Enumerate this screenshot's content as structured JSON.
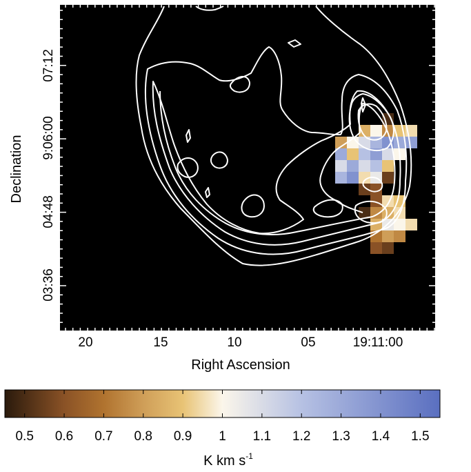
{
  "chart_data": {
    "type": "heatmap",
    "xlabel": "Right Ascension",
    "ylabel": "Declination",
    "x_ticks": [
      "20",
      "15",
      "10",
      "05",
      "19:11:00"
    ],
    "y_ticks": [
      "03:36",
      "04:48",
      "9:06:00",
      "07:12"
    ],
    "background": "#000000",
    "contour_color": "#ffffff",
    "colorbar": {
      "label": "K km s",
      "label_exponent": "-1",
      "min": 0.45,
      "max": 1.55,
      "ticks": [
        "0.5",
        "0.6",
        "0.7",
        "0.8",
        "0.9",
        "1",
        "1.1",
        "1.2",
        "1.3",
        "1.4",
        "1.5"
      ],
      "tick_values": [
        0.5,
        0.6,
        0.7,
        0.8,
        0.9,
        1.0,
        1.1,
        1.2,
        1.3,
        1.4,
        1.5
      ],
      "colormap": [
        {
          "v": 0.45,
          "color": "#2a1a0c"
        },
        {
          "v": 0.6,
          "color": "#8a5226"
        },
        {
          "v": 0.7,
          "color": "#b0732f"
        },
        {
          "v": 0.8,
          "color": "#cf9e58"
        },
        {
          "v": 0.9,
          "color": "#e8c375"
        },
        {
          "v": 1.0,
          "color": "#fbf6ea"
        },
        {
          "v": 1.2,
          "color": "#b6c1e3"
        },
        {
          "v": 1.55,
          "color": "#5a6fc0"
        }
      ]
    },
    "pixel_map": {
      "description_rows": "rows from north to south; values in K km s^-1; null = no data",
      "rows": [
        [
          null,
          null,
          null,
          null,
          null,
          0.5,
          null,
          null
        ],
        [
          null,
          null,
          null,
          0.85,
          1.0,
          0.75,
          0.9,
          0.95
        ],
        [
          null,
          0.8,
          1.0,
          1.1,
          1.25,
          1.4,
          1.3,
          1.35
        ],
        [
          null,
          1.3,
          0.9,
          1.2,
          1.35,
          1.1,
          1.0,
          null
        ],
        [
          null,
          1.1,
          1.3,
          1.1,
          1.2,
          0.9,
          null,
          null
        ],
        [
          null,
          1.25,
          1.4,
          0.95,
          1.05,
          0.55,
          null,
          null
        ],
        [
          null,
          null,
          null,
          0.55,
          0.6,
          null,
          null,
          null
        ],
        [
          null,
          null,
          null,
          null,
          0.6,
          0.95,
          0.9,
          null
        ],
        [
          null,
          null,
          null,
          0.5,
          0.75,
          0.85,
          0.95,
          null
        ],
        [
          null,
          null,
          null,
          null,
          0.85,
          1.05,
          1.0,
          0.95
        ],
        [
          null,
          null,
          null,
          null,
          0.7,
          0.8,
          0.75,
          null
        ],
        [
          null,
          null,
          null,
          null,
          0.6,
          0.55,
          null,
          null
        ]
      ]
    }
  }
}
